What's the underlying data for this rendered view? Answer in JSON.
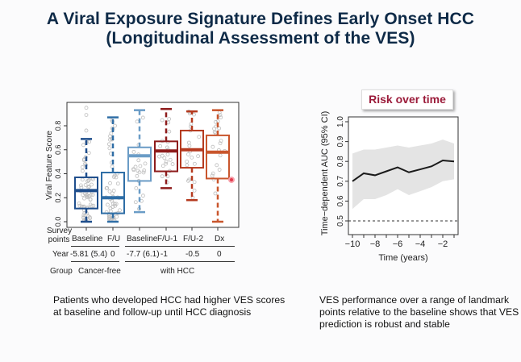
{
  "slide": {
    "title_line1": "A Viral Exposure Signature Defines Early Onset HCC",
    "title_line2": "(Longitudinal Assessment of the VES)",
    "risk_label": "Risk over time",
    "caption_left": "Patients who developed HCC had higher VES scores at baseline and follow-up until HCC diagnosis",
    "caption_right": "VES performance over a range of landmark points relative to the baseline shows that VES prediction is robust and stable"
  },
  "table": {
    "row_survey_label_1": "Survey",
    "row_survey_label_2": "points",
    "row_year_label": "Year",
    "row_group_label": "Group",
    "survey_points": [
      "Baseline",
      "F/U",
      "Baseline",
      "F/U-1",
      "F/U-2",
      "Dx"
    ],
    "years": [
      "-5.81 (5.4)",
      "0",
      "-7.7 (6.1)",
      "-1",
      "-0.5",
      "0"
    ],
    "groups": [
      "Cancer-free",
      "with HCC"
    ]
  },
  "chart_data": [
    {
      "type": "box",
      "title": "",
      "xlabel": "",
      "ylabel": "Viral Feature Score",
      "ylim": [
        0,
        0.95
      ],
      "yticks": [
        "0.0",
        "0.2",
        "0.4",
        "0.6",
        "0.8"
      ],
      "categories": [
        "Baseline (Cancer-free)",
        "F/U (Cancer-free)",
        "Baseline (with HCC)",
        "F/U-1 (with HCC)",
        "F/U-2 (with HCC)",
        "Dx (with HCC)"
      ],
      "boxes": [
        {
          "min": 0.0,
          "q1": 0.11,
          "median": 0.26,
          "q3": 0.37,
          "max": 0.69,
          "color": "#1f4e8c"
        },
        {
          "min": 0.0,
          "q1": 0.07,
          "median": 0.2,
          "q3": 0.41,
          "max": 0.87,
          "color": "#2f6ea6"
        },
        {
          "min": 0.08,
          "q1": 0.34,
          "median": 0.55,
          "q3": 0.62,
          "max": 0.93,
          "color": "#6a9cc6"
        },
        {
          "min": 0.28,
          "q1": 0.42,
          "median": 0.59,
          "q3": 0.67,
          "max": 0.94,
          "color": "#8e1c1c"
        },
        {
          "min": 0.18,
          "q1": 0.45,
          "median": 0.6,
          "q3": 0.76,
          "max": 0.92,
          "color": "#b53a1f"
        },
        {
          "min": 0.0,
          "q1": 0.36,
          "median": 0.58,
          "q3": 0.72,
          "max": 0.93,
          "color": "#c9562d"
        }
      ],
      "outliers": [
        {
          "box": 0,
          "value": 0.95
        },
        {
          "box": 0,
          "value": 0.89
        },
        {
          "box": 0,
          "value": 0.76
        }
      ]
    },
    {
      "type": "line",
      "title": "",
      "xlabel": "Time (years)",
      "ylabel": "Time−dependent AUC (95% CI)",
      "xlim": [
        -10.4,
        -0.6
      ],
      "ylim": [
        0.43,
        1.02
      ],
      "xticks": [
        "−10",
        "−8",
        "−6",
        "−4",
        "−2"
      ],
      "xtick_values": [
        -10,
        -8,
        -6,
        -4,
        -2
      ],
      "yticks": [
        "0.5",
        "0.6",
        "0.7",
        "0.8",
        "0.9",
        "1.0"
      ],
      "ytick_values": [
        0.5,
        0.6,
        0.7,
        0.8,
        0.9,
        1.0
      ],
      "x": [
        -10,
        -9,
        -8,
        -7,
        -6,
        -5,
        -4,
        -3,
        -2,
        -1
      ],
      "series": [
        {
          "name": "AUC",
          "values": [
            0.7,
            0.74,
            0.73,
            0.75,
            0.77,
            0.745,
            0.76,
            0.775,
            0.805,
            0.8
          ]
        },
        {
          "name": "CI upper",
          "values": [
            0.84,
            0.86,
            0.86,
            0.87,
            0.88,
            0.87,
            0.88,
            0.89,
            0.91,
            0.89
          ]
        },
        {
          "name": "CI lower",
          "values": [
            0.56,
            0.61,
            0.61,
            0.63,
            0.66,
            0.63,
            0.65,
            0.67,
            0.7,
            0.71
          ]
        }
      ],
      "reference_line": 0.5
    }
  ]
}
